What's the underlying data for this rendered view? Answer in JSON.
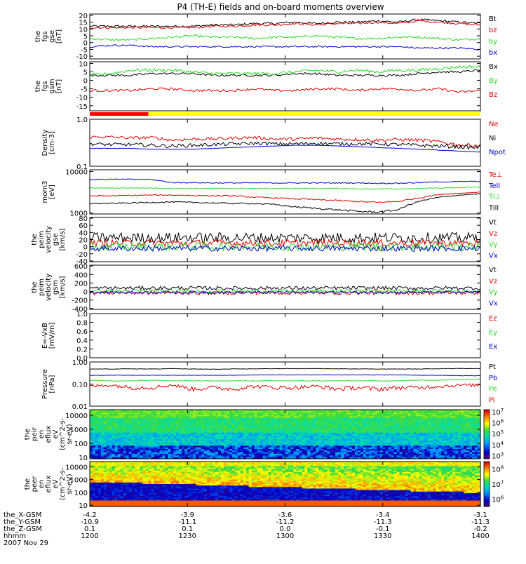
{
  "title": "P4 (TH-E) fields and on-board moments overview",
  "colors": {
    "black": "#000000",
    "red": "#dd0000",
    "green": "#22dd22",
    "blue": "#0000cc",
    "yellow": "#ffff00",
    "bar_red": "#ff0000"
  },
  "chart_data": [
    {
      "type": "line",
      "id": "fgs_gse",
      "ylabel_lines": [
        "the",
        "fgs",
        "gse",
        "[nT]"
      ],
      "ylim": [
        -12,
        21
      ],
      "yticks": [
        20,
        15,
        10,
        5,
        0,
        -5,
        -10
      ],
      "ytick_labels": [
        "20",
        "15",
        "10",
        "5",
        "0",
        "-5",
        "-10"
      ],
      "series": [
        {
          "name": "Bt",
          "color": "black",
          "level": 12,
          "trend": [
            12,
            12,
            12,
            12,
            12,
            12,
            13,
            13,
            14,
            14,
            15,
            14,
            15,
            15,
            16,
            15,
            17,
            16,
            15,
            14
          ],
          "noise": 0.8
        },
        {
          "name": "bz",
          "color": "red",
          "level": 11.5,
          "trend": [
            11,
            11,
            11,
            11,
            11,
            11,
            12,
            12,
            13,
            13,
            14,
            13,
            14,
            14,
            15,
            14,
            16,
            15,
            14,
            13
          ],
          "noise": 0.8
        },
        {
          "name": "by",
          "color": "green",
          "level": 4,
          "trend": [
            3,
            2,
            2,
            3,
            4,
            5,
            4,
            4,
            3,
            4,
            4,
            5,
            4,
            3,
            3,
            4,
            4,
            3,
            2,
            3
          ],
          "noise": 0.8
        },
        {
          "name": "bx",
          "color": "blue",
          "level": -2,
          "trend": [
            -3,
            -2,
            -2,
            -3,
            -3,
            -3,
            -3,
            -3,
            -3,
            -3,
            -3,
            -3,
            -3,
            -3,
            -3,
            -3,
            -4,
            -4,
            -4,
            -5
          ],
          "noise": 0.6
        }
      ]
    },
    {
      "type": "line",
      "id": "fgs_gsm",
      "ylabel_lines": [
        "the",
        "fgs",
        "gsm",
        "[nT]"
      ],
      "ylim": [
        -18,
        11
      ],
      "yticks": [
        10,
        5,
        0,
        -5,
        -10,
        -15
      ],
      "ytick_labels": [
        "10",
        "5",
        "0",
        "-5",
        "-10",
        "-15"
      ],
      "series": [
        {
          "name": "Bx",
          "color": "black",
          "level": 3,
          "trend": [
            3,
            3,
            3,
            4,
            4,
            4,
            3,
            3,
            3,
            3,
            4,
            4,
            3,
            3,
            3,
            3,
            4,
            5,
            5,
            6
          ],
          "noise": 0.6
        },
        {
          "name": "By",
          "color": "green",
          "level": 4,
          "trend": [
            3,
            4,
            6,
            6,
            6,
            5,
            4,
            4,
            4,
            4,
            5,
            6,
            5,
            6,
            5,
            6,
            6,
            7,
            8,
            8
          ],
          "noise": 0.9
        },
        {
          "name": "Bz",
          "color": "red",
          "level": -6,
          "trend": [
            -6,
            -6,
            -6,
            -5,
            -5,
            -6,
            -6,
            -6,
            -5,
            -6,
            -6,
            -5,
            -5,
            -6,
            -5,
            -5,
            -6,
            -5,
            -7,
            -6
          ],
          "noise": 0.7
        }
      ]
    },
    {
      "type": "line",
      "id": "density",
      "ylabel_lines": [
        "Density",
        "[cm-3]"
      ],
      "log": true,
      "ylim": [
        0.1,
        1.0
      ],
      "yticks": [
        1.0,
        0.1
      ],
      "ytick_labels": [
        "1.0",
        "0.1"
      ],
      "series": [
        {
          "name": "Ne",
          "color": "red",
          "trend": [
            0.42,
            0.42,
            0.4,
            0.41,
            0.36,
            0.38,
            0.38,
            0.4,
            0.41,
            0.38,
            0.38,
            0.4,
            0.38,
            0.37,
            0.36,
            0.37,
            0.36,
            0.33,
            0.28,
            0.28
          ],
          "noise": 0.03
        },
        {
          "name": "Ni",
          "color": "black",
          "trend": [
            0.3,
            0.29,
            0.29,
            0.28,
            0.27,
            0.28,
            0.29,
            0.3,
            0.31,
            0.3,
            0.3,
            0.31,
            0.3,
            0.3,
            0.3,
            0.29,
            0.28,
            0.27,
            0.26,
            0.25
          ],
          "noise": 0.025
        },
        {
          "name": "Npot",
          "color": "blue",
          "trend": [
            0.24,
            0.24,
            0.24,
            0.23,
            0.23,
            0.23,
            0.24,
            0.25,
            0.26,
            0.27,
            0.28,
            0.28,
            0.27,
            0.26,
            0.25,
            0.24,
            0.23,
            0.22,
            0.21,
            0.2
          ],
          "noise": 0.002
        }
      ]
    },
    {
      "type": "line",
      "id": "temperature",
      "ylabel_lines": [
        "mom3",
        "[eV]"
      ],
      "log": true,
      "ylim": [
        950,
        11000
      ],
      "yticks": [
        10000,
        1000
      ],
      "ytick_labels": [
        "10000",
        "1000"
      ],
      "series": [
        {
          "name": "Te⊥",
          "color": "red",
          "trend": [
            2600,
            2600,
            2650,
            2700,
            2700,
            2650,
            2600,
            2600,
            2400,
            2300,
            2200,
            2100,
            2000,
            1900,
            1800,
            1900,
            2300,
            2800,
            3000,
            3200
          ],
          "noise": 80
        },
        {
          "name": "Tell",
          "color": "blue",
          "trend": [
            6400,
            6500,
            6500,
            6400,
            5400,
            5400,
            5300,
            5300,
            5300,
            5300,
            5300,
            5300,
            5300,
            5300,
            5200,
            5200,
            5400,
            5600,
            5700,
            5800
          ],
          "noise": 150
        },
        {
          "name": "Ti⊥",
          "color": "green",
          "trend": [
            4000,
            4000,
            4000,
            4000,
            3900,
            3900,
            3900,
            3900,
            3900,
            3900,
            3900,
            3900,
            3900,
            3800,
            3800,
            3800,
            3900,
            4000,
            4100,
            4200
          ],
          "noise": 90
        },
        {
          "name": "Till",
          "color": "black",
          "trend": [
            1700,
            1700,
            1750,
            1800,
            1850,
            1800,
            1750,
            1700,
            1700,
            1600,
            1400,
            1300,
            1200,
            1100,
            1050,
            1200,
            1900,
            2400,
            2700,
            2900
          ],
          "noise": 60
        }
      ]
    },
    {
      "type": "line",
      "id": "peim_gse",
      "ylabel_lines": [
        "the",
        "peim",
        "velocity",
        "gse",
        "[km/s]"
      ],
      "ylim": [
        -42,
        82
      ],
      "yticks": [
        80,
        60,
        40,
        20,
        0,
        -20,
        -40
      ],
      "ytick_labels": [
        "80",
        "60",
        "40",
        "20",
        "0",
        "-20",
        "-40"
      ],
      "series": [
        {
          "name": "Vt",
          "color": "black",
          "level": 25,
          "noise": 15
        },
        {
          "name": "Vz",
          "color": "red",
          "level": 10,
          "noise": 10
        },
        {
          "name": "Vy",
          "color": "green",
          "level": 0,
          "noise": 12
        },
        {
          "name": "Vx",
          "color": "blue",
          "level": -5,
          "noise": 8
        }
      ]
    },
    {
      "type": "line",
      "id": "peim_gsm",
      "ylabel_lines": [
        "the",
        "peim",
        "velocity",
        "gsm",
        "[km/s]"
      ],
      "ylim": [
        -420,
        620
      ],
      "yticks": [
        600,
        400,
        200,
        0,
        -200,
        -400
      ],
      "ytick_labels": [
        "600",
        "400",
        "200",
        "0",
        "-200",
        "-400"
      ],
      "series": [
        {
          "name": "Vt",
          "color": "black",
          "level": 80,
          "noise": 45
        },
        {
          "name": "Vz",
          "color": "red",
          "level": -30,
          "noise": 45
        },
        {
          "name": "Vy",
          "color": "green",
          "level": 10,
          "noise": 40
        },
        {
          "name": "Vx",
          "color": "blue",
          "level": -20,
          "noise": 30
        }
      ]
    },
    {
      "type": "line",
      "id": "exb",
      "ylabel_lines": [
        "E=-VxB",
        "[mV/m]"
      ],
      "ylim": [
        0,
        1.0
      ],
      "yticks": [
        1.0,
        0.8,
        0.6,
        0.4,
        0.2,
        0.0
      ],
      "ytick_labels": [
        "1.0",
        "0.8",
        "0.6",
        "0.4",
        "0.2",
        "0.0"
      ],
      "series": [
        {
          "name": "Ez",
          "color": "red"
        },
        {
          "name": "Ey",
          "color": "green"
        },
        {
          "name": "Ex",
          "color": "blue"
        }
      ]
    },
    {
      "type": "line",
      "id": "pressure",
      "ylabel_lines": [
        "Pressure",
        "[nPa]"
      ],
      "log": true,
      "ylim": [
        0.01,
        1.0
      ],
      "yticks": [
        1.0,
        0.1,
        0.01
      ],
      "ytick_labels": [
        "1.00",
        "0.10",
        "0.01"
      ],
      "series": [
        {
          "name": "Pt",
          "color": "black",
          "trend": [
            0.48,
            0.48,
            0.49,
            0.48,
            0.5,
            0.48,
            0.47,
            0.48,
            0.49,
            0.5,
            0.5,
            0.5,
            0.49,
            0.49,
            0.48,
            0.48,
            0.48,
            0.5,
            0.51,
            0.5
          ],
          "noise": 0.01
        },
        {
          "name": "Pb",
          "color": "blue",
          "trend": [
            0.25,
            0.25,
            0.25,
            0.25,
            0.25,
            0.25,
            0.25,
            0.25,
            0.26,
            0.26,
            0.26,
            0.26,
            0.26,
            0.26,
            0.26,
            0.26,
            0.25,
            0.25,
            0.24,
            0.24
          ],
          "noise": 0.004
        },
        {
          "name": "Pe",
          "color": "green",
          "trend": [
            0.15,
            0.14,
            0.14,
            0.15,
            0.14,
            0.14,
            0.14,
            0.14,
            0.14,
            0.14,
            0.14,
            0.14,
            0.14,
            0.14,
            0.14,
            0.14,
            0.15,
            0.15,
            0.16,
            0.17
          ],
          "noise": 0.004
        },
        {
          "name": "Pi",
          "color": "red",
          "trend": [
            0.08,
            0.09,
            0.07,
            0.07,
            0.09,
            0.06,
            0.07,
            0.06,
            0.08,
            0.07,
            0.07,
            0.08,
            0.06,
            0.07,
            0.06,
            0.07,
            0.07,
            0.08,
            0.09,
            0.09
          ],
          "noise": 0.015
        }
      ]
    },
    {
      "type": "heatmap",
      "id": "peir",
      "ylabel_lines": [
        "the",
        "peir",
        "en",
        "eflux",
        "eV",
        "(cm^2-s-",
        "sr-eV)"
      ],
      "log": true,
      "ylim": [
        8,
        25000
      ],
      "yticks": [
        10000,
        1000,
        100,
        10
      ],
      "ytick_labels": [
        "10000",
        "1000",
        "100",
        "10"
      ],
      "colorbar": {
        "ticks": [
          "10^7",
          "10^6",
          "10^5",
          "10^4",
          "10^3"
        ],
        "log_range": [
          2.7,
          7.2
        ]
      }
    },
    {
      "type": "heatmap",
      "id": "peer",
      "ylabel_lines": [
        "the",
        "peer",
        "en",
        "eflux",
        "eV",
        "(cm^2-s-",
        "sr-eV)"
      ],
      "log": true,
      "ylim": [
        8,
        25000
      ],
      "yticks": [
        10000,
        1000,
        100,
        10
      ],
      "ytick_labels": [
        "10000",
        "1000",
        "100",
        "10"
      ],
      "colorbar": {
        "ticks": [
          "10^8",
          "10^7",
          "10^6"
        ],
        "log_range": [
          5.5,
          8.5
        ]
      }
    }
  ],
  "quality_bar": {
    "segments": [
      {
        "from": 1200,
        "to": 1218,
        "color": "bar_red"
      },
      {
        "from": 1218,
        "to": 1400,
        "color": "yellow"
      }
    ]
  },
  "xaxis": {
    "xlim": [
      1200,
      1400
    ],
    "ticks": [
      1200,
      1230,
      1300,
      1330,
      1400
    ],
    "rows": [
      {
        "label": "the_X-GSM",
        "values": [
          "-4.2",
          "-3.9",
          "-3.6",
          "-3.4",
          "-3.1"
        ]
      },
      {
        "label": "the_Y-GSM",
        "values": [
          "-10.9",
          "-11.1",
          "-11.2",
          "-11.3",
          "-11.3"
        ]
      },
      {
        "label": "the_Z-GSM",
        "values": [
          "0.1",
          "0.1",
          "0.0",
          "-0.1",
          "-0.2"
        ]
      },
      {
        "label": "hhmm",
        "values": [
          "1200",
          "1230",
          "1300",
          "1330",
          "1400"
        ]
      }
    ],
    "date": "2007 Nov 29"
  }
}
